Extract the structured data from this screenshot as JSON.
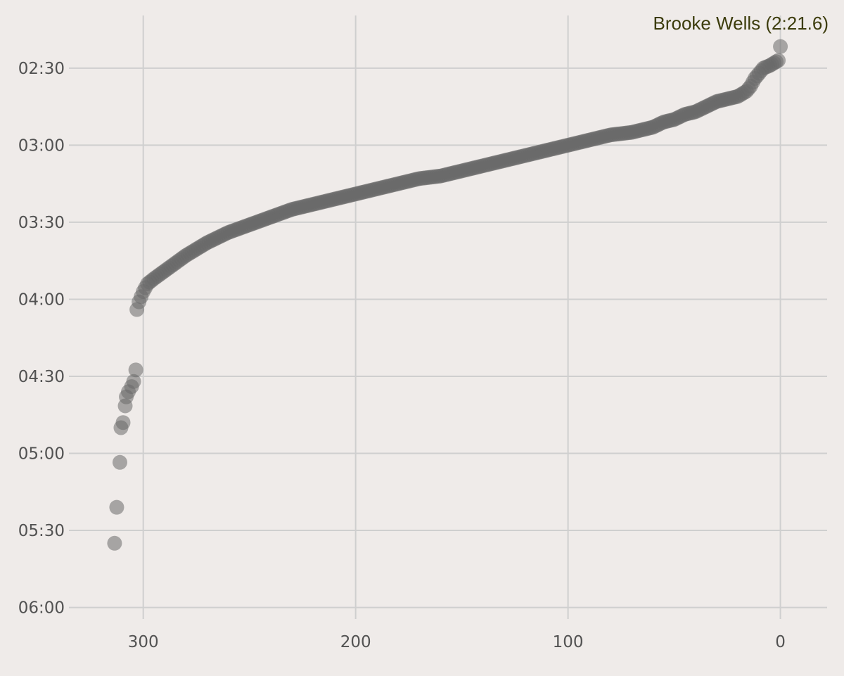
{
  "chart_data": {
    "type": "scatter",
    "title": "",
    "xlabel": "",
    "ylabel": "",
    "x_axis": {
      "reversed": true,
      "xlim": [
        335,
        -22
      ],
      "ticks": [
        300,
        200,
        100,
        0
      ],
      "tick_labels": [
        "300",
        "200",
        "100",
        "0"
      ]
    },
    "y_axis": {
      "inverted": true,
      "unit": "seconds (mm:ss)",
      "ylim": [
        129.5,
        364.5
      ],
      "ticks": [
        150,
        180,
        210,
        240,
        270,
        300,
        330,
        360
      ],
      "tick_labels": [
        "02:30",
        "03:00",
        "03:30",
        "04:00",
        "04:30",
        "05:00",
        "05:30",
        "06:00"
      ]
    },
    "grid": true,
    "legend": "none",
    "point_color": "#6a6a6a",
    "annotation": {
      "text": "Brooke Wells (2:21.6)",
      "x": 0,
      "y": 141.6,
      "placement": "top-right"
    },
    "curve_points": [
      [
        0,
        141.6
      ],
      [
        1,
        147
      ],
      [
        3,
        148
      ],
      [
        5,
        149
      ],
      [
        8,
        150
      ],
      [
        10,
        152
      ],
      [
        12,
        154
      ],
      [
        14,
        157
      ],
      [
        16,
        159
      ],
      [
        20,
        161
      ],
      [
        25,
        162
      ],
      [
        30,
        163
      ],
      [
        35,
        165
      ],
      [
        40,
        167
      ],
      [
        45,
        168
      ],
      [
        50,
        170
      ],
      [
        55,
        171
      ],
      [
        60,
        173
      ],
      [
        65,
        174
      ],
      [
        70,
        175
      ],
      [
        80,
        176
      ],
      [
        90,
        178
      ],
      [
        100,
        180
      ],
      [
        110,
        182
      ],
      [
        120,
        184
      ],
      [
        130,
        186
      ],
      [
        140,
        188
      ],
      [
        150,
        190
      ],
      [
        160,
        192
      ],
      [
        170,
        193
      ],
      [
        180,
        195
      ],
      [
        190,
        197
      ],
      [
        200,
        199
      ],
      [
        210,
        201
      ],
      [
        220,
        203
      ],
      [
        230,
        205
      ],
      [
        240,
        208
      ],
      [
        250,
        211
      ],
      [
        260,
        214
      ],
      [
        270,
        218
      ],
      [
        280,
        223
      ],
      [
        290,
        229
      ],
      [
        295,
        232
      ],
      [
        298,
        234
      ],
      [
        300,
        237
      ],
      [
        301,
        239
      ],
      [
        302,
        241
      ],
      [
        303,
        244
      ]
    ],
    "tail_points": [
      [
        303.5,
        267.5
      ],
      [
        304.5,
        272
      ],
      [
        305.5,
        274
      ],
      [
        307,
        276
      ],
      [
        308,
        278
      ],
      [
        308.5,
        281.5
      ],
      [
        309.5,
        288
      ],
      [
        310.5,
        290
      ],
      [
        311,
        303.5
      ],
      [
        312.5,
        321
      ],
      [
        313.5,
        335
      ]
    ]
  }
}
